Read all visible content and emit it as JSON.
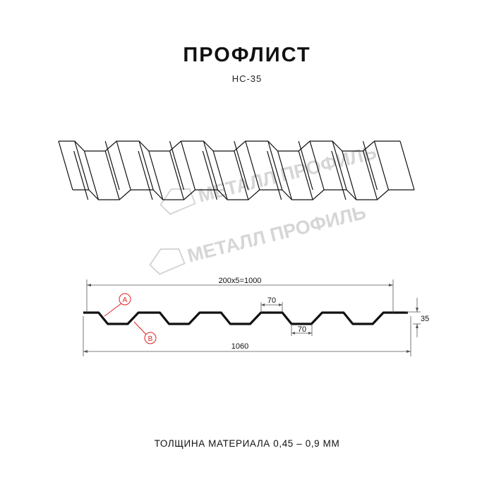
{
  "title": "ПРОФЛИСТ",
  "subtitle": "НС-35",
  "watermark": "МЕТАЛЛ ПРОФИЛЬ",
  "dimensions": {
    "pitch_total": "200x5=1000",
    "crest_width": "70",
    "valley_width": "70",
    "height": "35",
    "total_width": "1060"
  },
  "markers": {
    "a": "A",
    "b": "B"
  },
  "footer": "ТОЛЩИНА МАТЕРИАЛА 0,45 – 0,9 ММ",
  "colors": {
    "line": "#111111",
    "marker": "#e02020",
    "watermark": "#d6d6d6",
    "dim": "#555555"
  }
}
